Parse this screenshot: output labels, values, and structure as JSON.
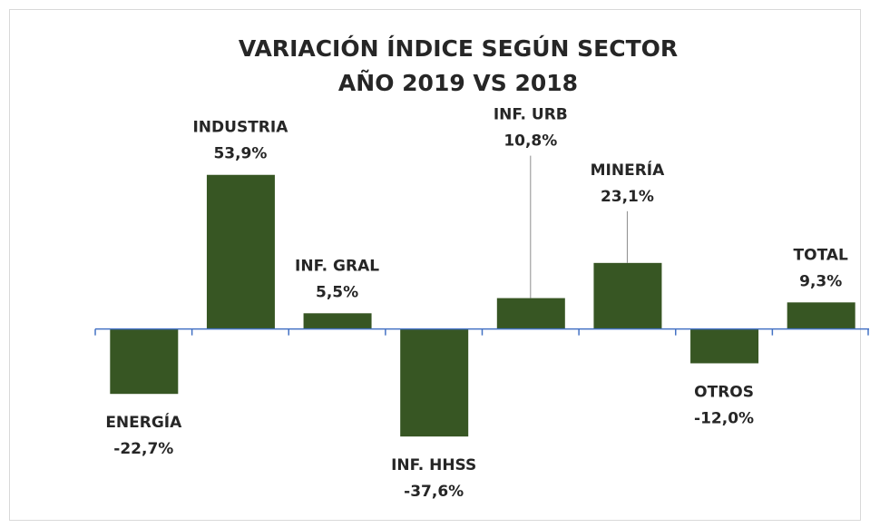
{
  "chart_data": {
    "type": "bar",
    "title": [
      "VARIACIÓN ÍNDICE SEGÚN SECTOR",
      "AÑO 2019 VS 2018"
    ],
    "categories": [
      "ENERGÍA",
      "INDUSTRIA",
      "INF. GRAL",
      "INF. HHSS",
      "INF. URB",
      "MINERÍA",
      "OTROS",
      "TOTAL"
    ],
    "values": [
      -22.7,
      53.9,
      5.5,
      -37.6,
      10.8,
      23.1,
      -12.0,
      9.3
    ],
    "value_labels": [
      "-22,7%",
      "53,9%",
      "5,5%",
      "-37,6%",
      "10,8%",
      "23,1%",
      "-12,0%",
      "9,3%"
    ],
    "color": "#375623",
    "ylim": [
      -55,
      70
    ]
  }
}
